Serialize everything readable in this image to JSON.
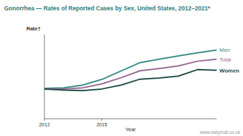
{
  "chart_data": {
    "type": "line",
    "title": "Gonorrhea — Rates of Reported Cases by Sex, United States, 2012–2021*",
    "y_label": "Rate†",
    "x_label": "Year",
    "annotation": "www.dailymail.co.uk",
    "x": [
      2012,
      2013,
      2014,
      2015,
      2016,
      2017,
      2018,
      2019,
      2020,
      2021
    ],
    "xlim": [
      2012,
      2021
    ],
    "xticks": [
      2012,
      2015
    ],
    "ylim": [
      0,
      300
    ],
    "tick_labels": "x",
    "grid": false,
    "series": [
      {
        "name": "Men",
        "color": "#3b8d87",
        "values": [
          108,
          110,
          120,
          140,
          170,
          200,
          212,
          224,
          235,
          245
        ]
      },
      {
        "name": "Total",
        "color": "#9a6a92",
        "values": [
          107,
          106,
          110,
          124,
          146,
          171,
          179,
          188,
          205,
          212
        ]
      },
      {
        "name": "Women",
        "color": "#1f4f48",
        "values": [
          106,
          102,
          100,
          106,
          120,
          141,
          145,
          152,
          175,
          173
        ]
      }
    ]
  }
}
